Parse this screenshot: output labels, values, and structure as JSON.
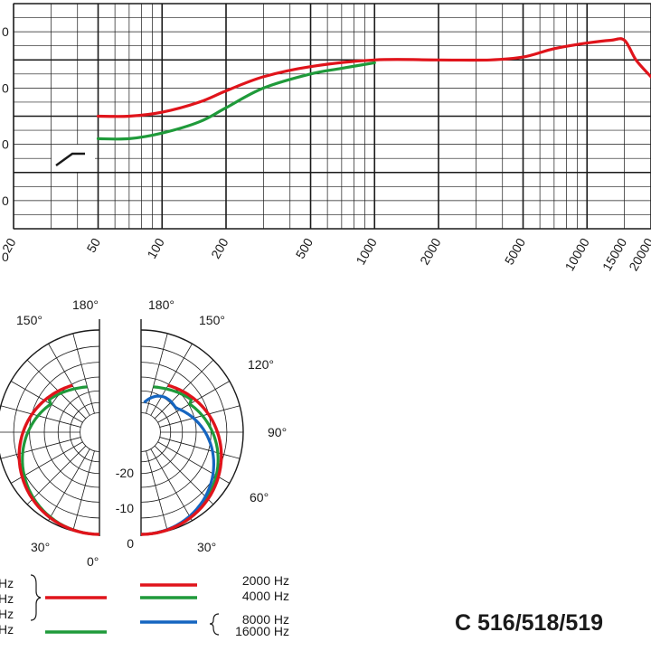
{
  "model": "C 516/518/519",
  "colors": {
    "red": "#e0141b",
    "green": "#1f9a3a",
    "blue": "#1565c0",
    "grid": "#1a1a1a"
  },
  "chart_data": [
    {
      "type": "line",
      "title": "",
      "xscale": "log",
      "xlim": [
        20,
        20000
      ],
      "ylim": [
        -30,
        10
      ],
      "x_ticks": [
        "50",
        "100",
        "200",
        "500",
        "1000",
        "2000",
        "5000",
        "10000",
        "15000",
        "20000"
      ],
      "y_tick_labels": [
        "0",
        "0",
        "0",
        "0",
        "0"
      ],
      "grid": true,
      "series": [
        {
          "color": "red",
          "x": [
            50,
            70,
            100,
            150,
            200,
            300,
            500,
            1000,
            2000,
            3500,
            5000,
            7000,
            10000,
            13000,
            15000,
            17000,
            20000
          ],
          "y": [
            -10,
            -10,
            -9.3,
            -7.5,
            -5.5,
            -3,
            -1.2,
            0,
            0,
            0,
            0.5,
            2,
            3,
            3.5,
            3.5,
            0,
            -3
          ]
        },
        {
          "color": "green",
          "x": [
            50,
            70,
            100,
            150,
            200,
            300,
            500,
            700,
            1000
          ],
          "y": [
            -14,
            -14,
            -13,
            -11,
            -8.5,
            -5,
            -2.5,
            -1.5,
            -0.5
          ]
        }
      ]
    },
    {
      "type": "polar",
      "angle_labels": [
        "180°",
        "150°",
        "120°",
        "90°",
        "60°",
        "30°",
        "0°"
      ],
      "radial_labels": [
        "-20",
        "-10",
        "0"
      ],
      "legend": [
        {
          "label": "2000 Hz",
          "color": "red"
        },
        {
          "label": "4000 Hz",
          "color": "green"
        },
        {
          "label": "8000 Hz",
          "color": "blue"
        },
        {
          "label": "16000 Hz",
          "color": "blue"
        }
      ],
      "left_legend_labels": [
        "Hz",
        "Hz",
        "Hz",
        "Hz"
      ]
    }
  ]
}
